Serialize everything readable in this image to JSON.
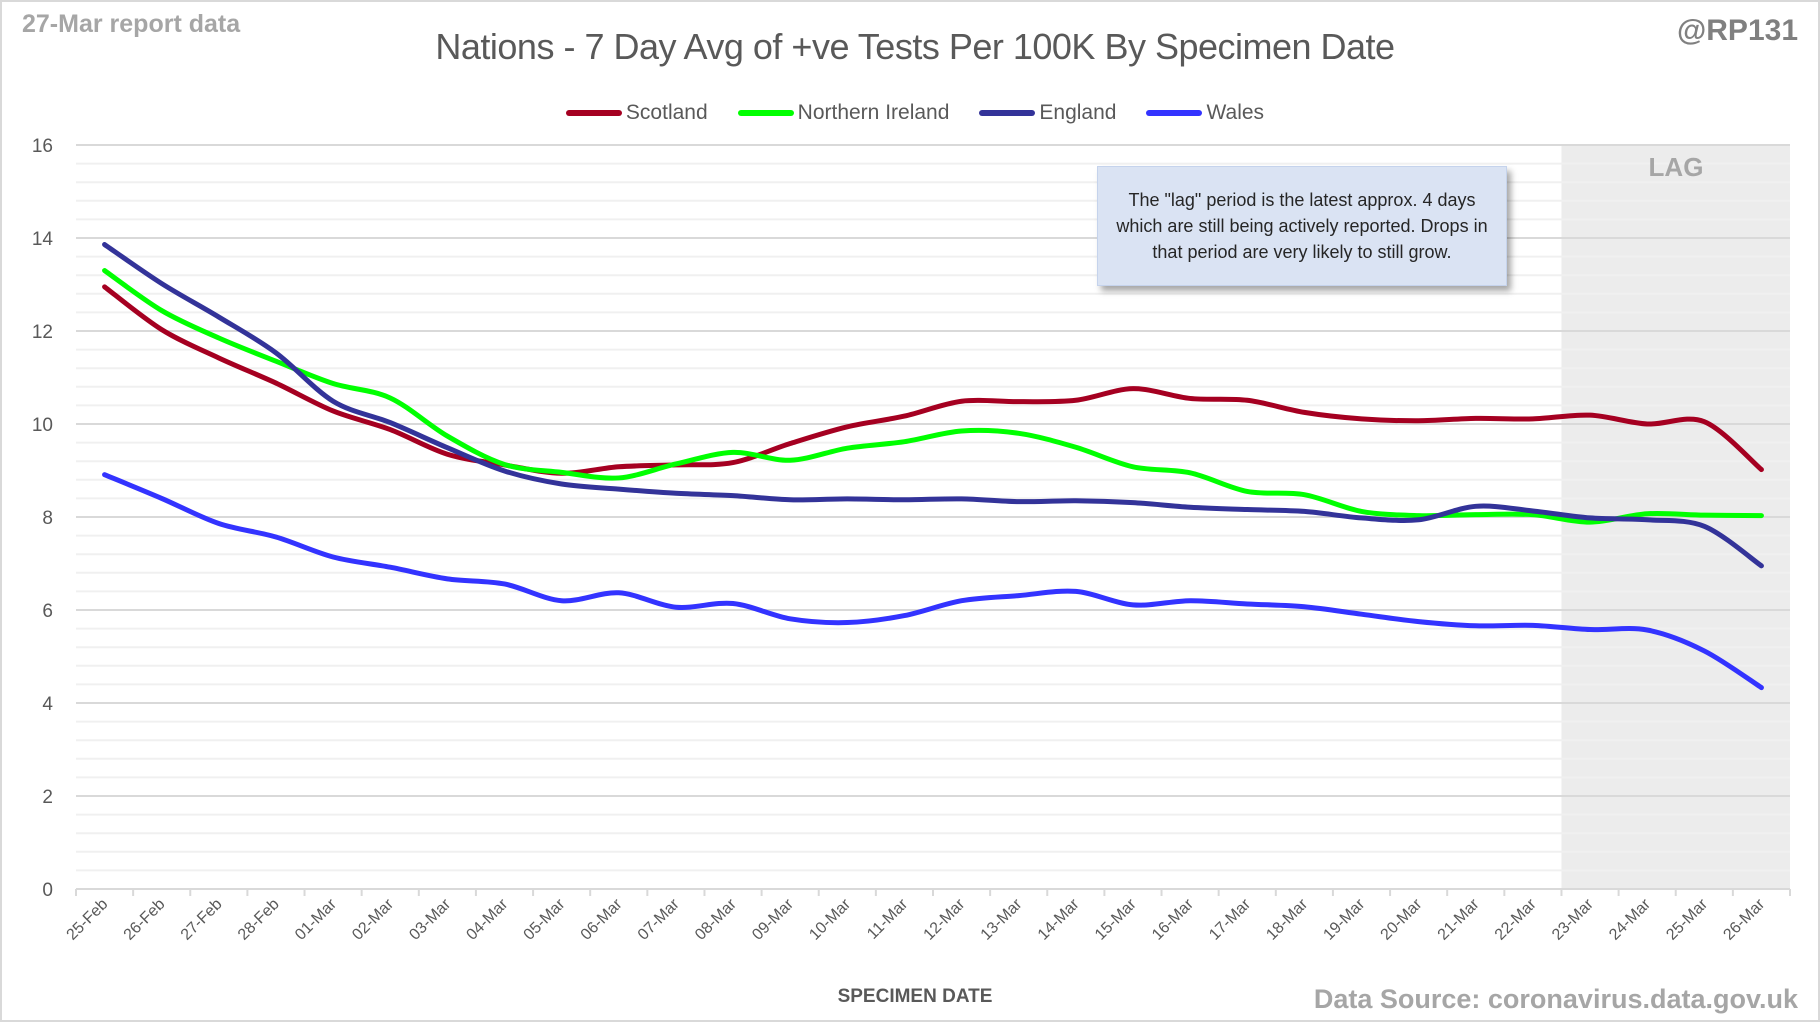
{
  "header": {
    "report_label": "27-Mar report data",
    "handle": "@RP131",
    "source": "Data Source: coronavirus.data.gov.uk"
  },
  "annotation": {
    "text": "The \"lag\" period is the latest approx. 4 days which are still being actively reported.  Drops in that period are very likely to still grow.",
    "lag_label": "LAG"
  },
  "chart_data": {
    "type": "line",
    "title": "Nations - 7 Day Avg of +ve Tests Per 100K By Specimen Date",
    "xlabel": "SPECIMEN DATE",
    "ylabel": "",
    "ylim": [
      0,
      16
    ],
    "yticks": [
      0,
      2,
      4,
      6,
      8,
      10,
      12,
      14,
      16
    ],
    "grid": true,
    "legend_position": "top-center",
    "categories": [
      "25-Feb",
      "26-Feb",
      "27-Feb",
      "28-Feb",
      "01-Mar",
      "02-Mar",
      "03-Mar",
      "04-Mar",
      "05-Mar",
      "06-Mar",
      "07-Mar",
      "08-Mar",
      "09-Mar",
      "10-Mar",
      "11-Mar",
      "12-Mar",
      "13-Mar",
      "14-Mar",
      "15-Mar",
      "16-Mar",
      "17-Mar",
      "18-Mar",
      "19-Mar",
      "20-Mar",
      "21-Mar",
      "22-Mar",
      "23-Mar",
      "24-Mar",
      "25-Mar",
      "26-Mar"
    ],
    "lag_region": {
      "from": "23-Mar",
      "to": "26-Mar",
      "label": "LAG"
    },
    "series": [
      {
        "name": "Scotland",
        "color": "#a50021",
        "values": [
          12.95,
          12.03,
          11.42,
          10.88,
          10.28,
          9.88,
          9.35,
          9.12,
          8.94,
          9.08,
          9.12,
          9.17,
          9.58,
          9.94,
          10.17,
          10.49,
          10.48,
          10.51,
          10.76,
          10.55,
          10.51,
          10.25,
          10.11,
          10.07,
          10.12,
          10.11,
          10.19,
          10.0,
          10.05,
          9.02
        ]
      },
      {
        "name": "Northern Ireland",
        "color": "#00ff00",
        "values": [
          13.3,
          12.44,
          11.85,
          11.35,
          10.87,
          10.56,
          9.74,
          9.13,
          8.96,
          8.84,
          9.14,
          9.39,
          9.22,
          9.48,
          9.62,
          9.85,
          9.8,
          9.5,
          9.08,
          8.95,
          8.55,
          8.48,
          8.12,
          8.03,
          8.05,
          8.05,
          7.89,
          8.07,
          8.04,
          8.03
        ]
      },
      {
        "name": "England",
        "color": "#333399",
        "values": [
          13.86,
          13.02,
          12.3,
          11.53,
          10.49,
          10.03,
          9.49,
          8.99,
          8.71,
          8.6,
          8.51,
          8.46,
          8.37,
          8.39,
          8.37,
          8.39,
          8.33,
          8.35,
          8.31,
          8.21,
          8.16,
          8.12,
          7.98,
          7.94,
          8.23,
          8.13,
          7.98,
          7.94,
          7.8,
          6.95
        ]
      },
      {
        "name": "Wales",
        "color": "#3333ff",
        "values": [
          8.91,
          8.4,
          7.86,
          7.57,
          7.14,
          6.92,
          6.67,
          6.56,
          6.2,
          6.37,
          6.06,
          6.14,
          5.81,
          5.73,
          5.88,
          6.2,
          6.31,
          6.4,
          6.11,
          6.2,
          6.13,
          6.07,
          5.91,
          5.75,
          5.66,
          5.67,
          5.58,
          5.57,
          5.12,
          4.33
        ]
      }
    ]
  }
}
